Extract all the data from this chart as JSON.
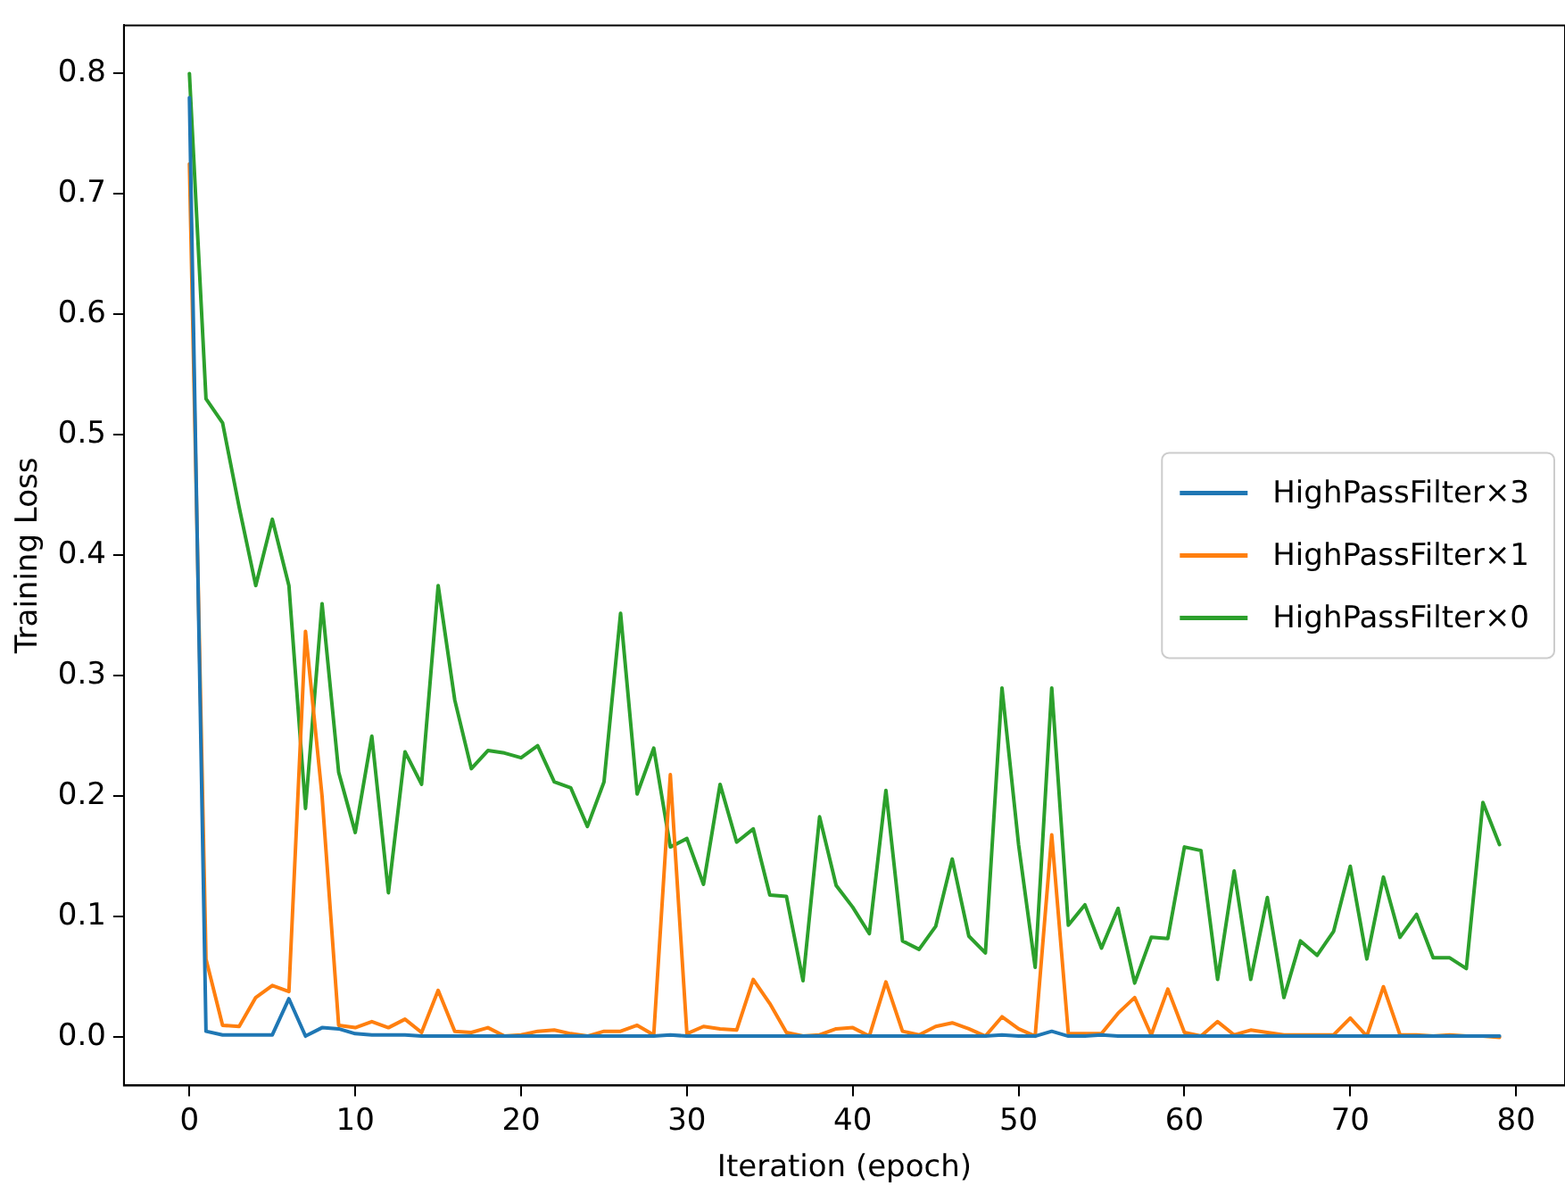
{
  "chart_data": {
    "type": "line",
    "xlabel": "Iteration (epoch)",
    "ylabel": "Training Loss",
    "x": [
      0,
      1,
      2,
      3,
      4,
      5,
      6,
      7,
      8,
      9,
      10,
      11,
      12,
      13,
      14,
      15,
      16,
      17,
      18,
      19,
      20,
      21,
      22,
      23,
      24,
      25,
      26,
      27,
      28,
      29,
      30,
      31,
      32,
      33,
      34,
      35,
      36,
      37,
      38,
      39,
      40,
      41,
      42,
      43,
      44,
      45,
      46,
      47,
      48,
      49,
      50,
      51,
      52,
      53,
      54,
      55,
      56,
      57,
      58,
      59,
      60,
      61,
      62,
      63,
      64,
      65,
      66,
      67,
      68,
      69,
      70,
      71,
      72,
      73,
      74,
      75,
      76,
      77,
      78,
      79
    ],
    "xlim": [
      -3.95,
      82.95
    ],
    "xticks": [
      0,
      10,
      20,
      30,
      40,
      50,
      60,
      70,
      80
    ],
    "ylim": [
      -0.04,
      0.84
    ],
    "yticks": [
      {
        "value": 0,
        "label": "0.0"
      },
      {
        "value": 0.1,
        "label": "0.1"
      },
      {
        "value": 0.2,
        "label": "0.2"
      },
      {
        "value": 0.3,
        "label": "0.3"
      },
      {
        "value": 0.4,
        "label": "0.4"
      },
      {
        "value": 0.5,
        "label": "0.5"
      },
      {
        "value": 0.6,
        "label": "0.6"
      },
      {
        "value": 0.7,
        "label": "0.7"
      },
      {
        "value": 0.8,
        "label": "0.8"
      }
    ],
    "grid": false,
    "legend": "right",
    "marker": "none",
    "line_style": "solid",
    "series": [
      {
        "name": "HighPassFilter×3",
        "color": "#1f77b4",
        "values": [
          0.78,
          0.005,
          0.002,
          0.002,
          0.002,
          0.002,
          0.032,
          0.001,
          0.008,
          0.007,
          0.003,
          0.002,
          0.002,
          0.002,
          0.001,
          0.001,
          0.001,
          0.001,
          0.001,
          0.001,
          0.001,
          0.001,
          0.001,
          0.001,
          0.001,
          0.001,
          0.001,
          0.001,
          0.001,
          0.002,
          0.001,
          0.001,
          0.001,
          0.001,
          0.001,
          0.001,
          0.001,
          0.001,
          0.001,
          0.001,
          0.001,
          0.001,
          0.001,
          0.001,
          0.001,
          0.001,
          0.001,
          0.001,
          0.001,
          0.002,
          0.001,
          0.001,
          0.005,
          0.001,
          0.001,
          0.002,
          0.001,
          0.001,
          0.001,
          0.001,
          0.001,
          0.001,
          0.001,
          0.001,
          0.001,
          0.001,
          0.001,
          0.001,
          0.001,
          0.001,
          0.001,
          0.001,
          0.001,
          0.001,
          0.001,
          0.001,
          0.001,
          0.001,
          0.001,
          0.001
        ]
      },
      {
        "name": "HighPassFilter×1",
        "color": "#ff7f0e",
        "values": [
          0.725,
          0.065,
          0.01,
          0.009,
          0.033,
          0.043,
          0.038,
          0.337,
          0.2,
          0.01,
          0.008,
          0.013,
          0.008,
          0.015,
          0.004,
          0.039,
          0.005,
          0.004,
          0.008,
          0.001,
          0.002,
          0.005,
          0.006,
          0.003,
          0.001,
          0.005,
          0.005,
          0.01,
          0.002,
          0.218,
          0.003,
          0.009,
          0.007,
          0.006,
          0.048,
          0.028,
          0.004,
          0.001,
          0.002,
          0.007,
          0.008,
          0.001,
          0.046,
          0.005,
          0.002,
          0.009,
          0.012,
          0.007,
          0.001,
          0.017,
          0.007,
          0.001,
          0.168,
          0.003,
          0.003,
          0.003,
          0.02,
          0.033,
          0.002,
          0.04,
          0.004,
          0.001,
          0.013,
          0.002,
          0.006,
          0.004,
          0.002,
          0.002,
          0.002,
          0.002,
          0.016,
          0.001,
          0.042,
          0.002,
          0.002,
          0.001,
          0.002,
          0.001,
          0.001,
          0.0
        ]
      },
      {
        "name": "HighPassFilter×0",
        "color": "#2ca02c",
        "values": [
          0.8,
          0.53,
          0.51,
          0.44,
          0.375,
          0.43,
          0.375,
          0.19,
          0.36,
          0.22,
          0.17,
          0.25,
          0.12,
          0.237,
          0.21,
          0.375,
          0.28,
          0.223,
          0.238,
          0.236,
          0.232,
          0.242,
          0.212,
          0.207,
          0.175,
          0.212,
          0.352,
          0.202,
          0.24,
          0.158,
          0.165,
          0.127,
          0.21,
          0.162,
          0.173,
          0.118,
          0.117,
          0.047,
          0.183,
          0.126,
          0.108,
          0.086,
          0.205,
          0.08,
          0.073,
          0.092,
          0.148,
          0.084,
          0.07,
          0.29,
          0.16,
          0.058,
          0.29,
          0.093,
          0.11,
          0.074,
          0.107,
          0.045,
          0.083,
          0.082,
          0.158,
          0.155,
          0.048,
          0.138,
          0.048,
          0.116,
          0.033,
          0.08,
          0.068,
          0.088,
          0.142,
          0.065,
          0.133,
          0.083,
          0.102,
          0.066,
          0.066,
          0.057,
          0.195,
          0.16
        ]
      }
    ]
  }
}
